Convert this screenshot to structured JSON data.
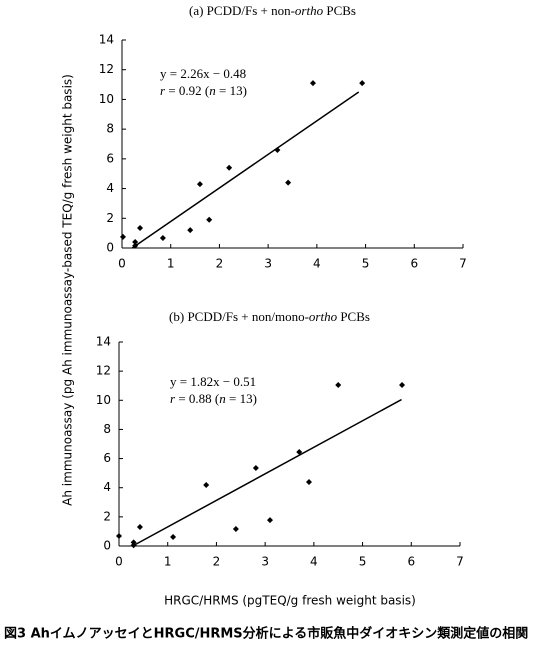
{
  "chart_data": [
    {
      "type": "scatter",
      "title": [
        {
          "text": "(a) PCDD/Fs + non-"
        },
        {
          "text": "ortho",
          "italic": true
        },
        {
          "text": " PCBs"
        }
      ],
      "annotation": [
        [
          {
            "text": "y = 2.26x − 0.48"
          }
        ],
        [
          {
            "text": "r",
            "italic": true
          },
          {
            "text": " = 0.92 ("
          },
          {
            "text": "n",
            "italic": true
          },
          {
            "text": " = 13)"
          }
        ]
      ],
      "x": [
        0.02,
        0.27,
        0.27,
        0.37,
        0.84,
        1.4,
        1.6,
        1.79,
        2.2,
        3.19,
        3.41,
        3.92,
        4.93
      ],
      "values": [
        0.75,
        0.4,
        0.15,
        1.35,
        0.67,
        1.2,
        4.3,
        1.9,
        5.4,
        6.6,
        4.4,
        11.1,
        11.1
      ],
      "fit": {
        "x": [
          0.21,
          4.86
        ],
        "y": [
          0,
          10.5
        ]
      },
      "color": "#000000",
      "xlim": [
        0,
        7
      ],
      "xticks": [
        0,
        1,
        2,
        3,
        4,
        5,
        6,
        7
      ],
      "ylim": [
        0,
        14
      ],
      "yticks": [
        0,
        2,
        4,
        6,
        8,
        10,
        12,
        14
      ]
    },
    {
      "type": "scatter",
      "title": [
        {
          "text": "(b) PCDD/Fs + non/mono-"
        },
        {
          "text": "ortho",
          "italic": true
        },
        {
          "text": " PCBs"
        }
      ],
      "annotation": [
        [
          {
            "text": "y = 1.82x − 0.51"
          }
        ],
        [
          {
            "text": "r",
            "italic": true
          },
          {
            "text": " = 0.88 ("
          },
          {
            "text": "n",
            "italic": true
          },
          {
            "text": " = 13)"
          }
        ]
      ],
      "x": [
        0.0,
        0.3,
        0.3,
        0.43,
        1.11,
        1.79,
        2.4,
        2.81,
        3.1,
        3.7,
        3.9,
        4.5,
        5.81
      ],
      "values": [
        0.69,
        0.25,
        0.05,
        1.3,
        0.62,
        4.19,
        1.17,
        5.35,
        1.78,
        6.45,
        4.39,
        11.05,
        11.05
      ],
      "fit": {
        "x": [
          0.28,
          5.8
        ],
        "y": [
          0,
          10.05
        ]
      },
      "color": "#000000",
      "xlim": [
        0,
        7
      ],
      "xticks": [
        0,
        1,
        2,
        3,
        4,
        5,
        6,
        7
      ],
      "ylim": [
        0,
        14
      ],
      "yticks": [
        0,
        2,
        4,
        6,
        8,
        10,
        12,
        14
      ]
    }
  ],
  "y_label": "Ah immunoassay (pg Ah immunoassay-based TEQ/g fresh weight basis)",
  "x_label": "HRGC/HRMS (pgTEQ/g fresh weight basis)",
  "caption": "図3 AhイムノアッセイとHRGC/HRMS分析による市販魚中ダイオキシン類測定値の相関"
}
